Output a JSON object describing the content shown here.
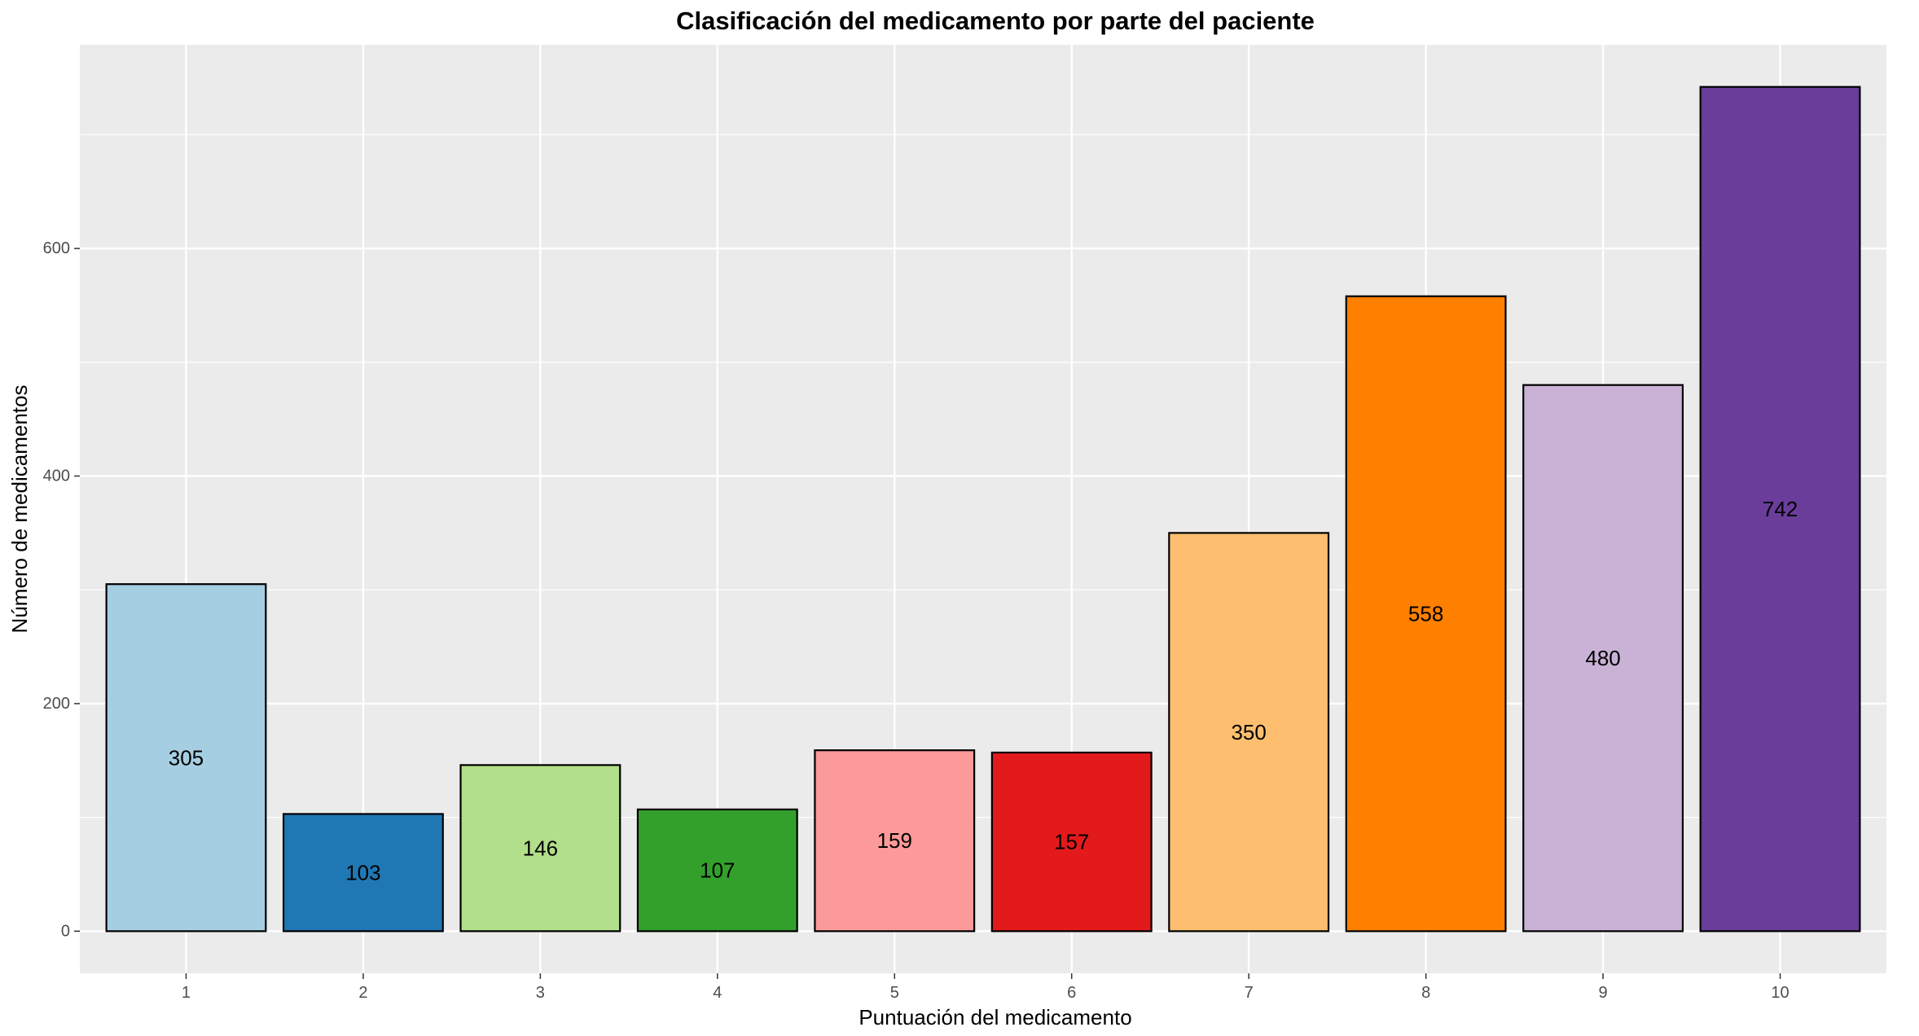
{
  "chart_data": {
    "type": "bar",
    "title": "Clasificación del medicamento por parte del paciente",
    "xlabel": "Puntuación del medicamento",
    "ylabel": "Número de medicamentos",
    "categories": [
      "1",
      "2",
      "3",
      "4",
      "5",
      "6",
      "7",
      "8",
      "9",
      "10"
    ],
    "values": [
      305,
      103,
      146,
      107,
      159,
      157,
      350,
      558,
      480,
      742
    ],
    "colors": [
      "#a6cee3",
      "#1f78b4",
      "#b2df8a",
      "#33a02c",
      "#fb9a99",
      "#e31a1c",
      "#fdbf6f",
      "#ff7f00",
      "#cab2d6",
      "#6a3d9a"
    ],
    "yticks": [
      0,
      200,
      400,
      600
    ],
    "ylim": [
      -37,
      779
    ],
    "grid": true,
    "legend": "none",
    "background": "#ebebeb",
    "gridline_color": "#ffffff",
    "bar_outline": "#000000"
  }
}
